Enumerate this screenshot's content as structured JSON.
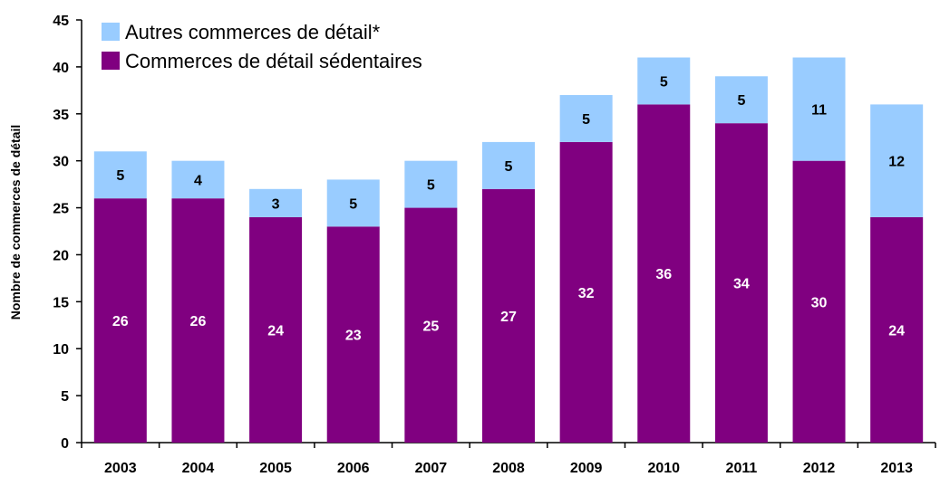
{
  "chart_data": {
    "type": "bar",
    "stacked": true,
    "title": "",
    "xlabel": "",
    "ylabel": "Nombre de commerces de détail",
    "categories": [
      "2003",
      "2004",
      "2005",
      "2006",
      "2007",
      "2008",
      "2009",
      "2010",
      "2011",
      "2012",
      "2013"
    ],
    "series": [
      {
        "name": "Commerces de détail sédentaires",
        "color": "#800080",
        "label_color": "#ffffff",
        "values": [
          26,
          26,
          24,
          23,
          25,
          27,
          32,
          36,
          34,
          30,
          24
        ]
      },
      {
        "name": "Autres commerces de détail*",
        "color": "#99ccff",
        "label_color": "#000000",
        "values": [
          5,
          4,
          3,
          5,
          5,
          5,
          5,
          5,
          5,
          11,
          12
        ]
      }
    ],
    "ylim": [
      0,
      45
    ],
    "yticks": [
      0,
      5,
      10,
      15,
      20,
      25,
      30,
      35,
      40,
      45
    ],
    "grid": false,
    "legend_position": "top-left"
  }
}
